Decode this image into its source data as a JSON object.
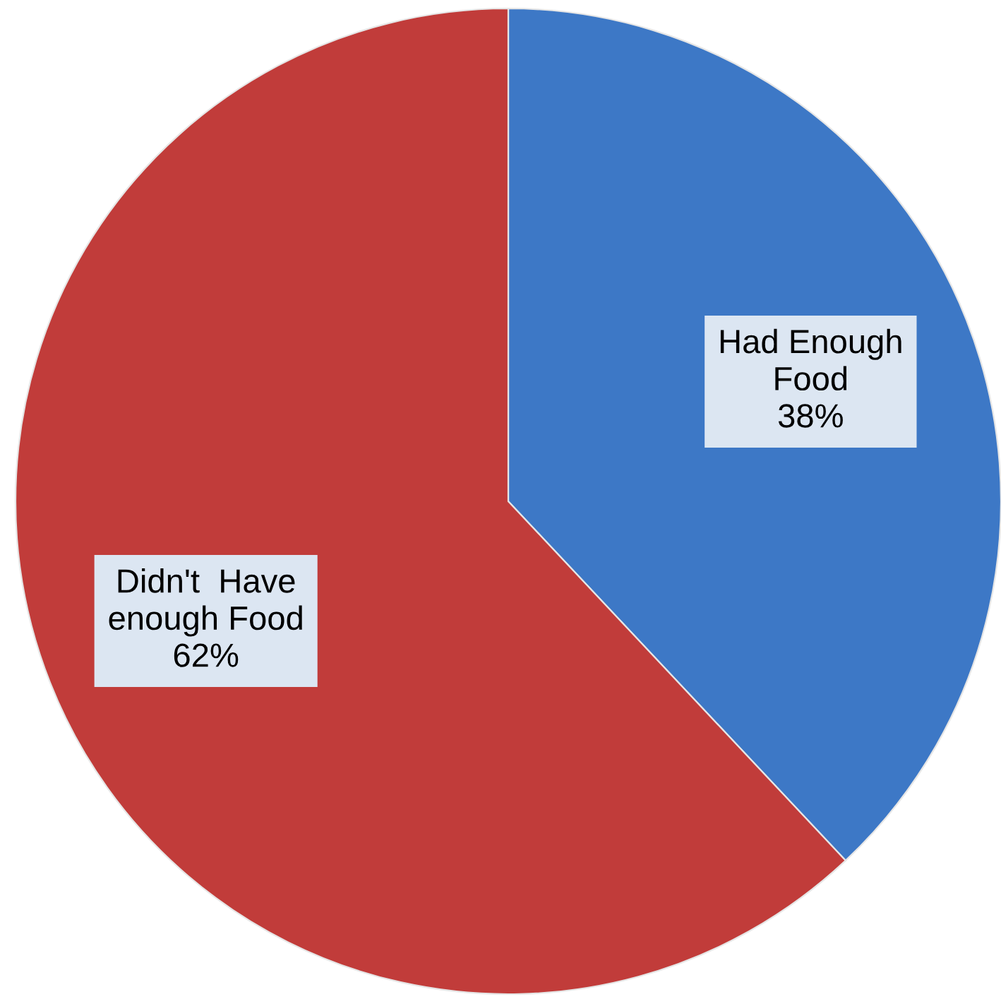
{
  "chart_data": {
    "type": "pie",
    "categories": [
      "Had Enough\nFood",
      "Didn't  Have\nenough Food"
    ],
    "values": [
      38,
      62
    ],
    "value_labels": [
      "38%",
      "62%"
    ],
    "colors": [
      "#3d78c6",
      "#c13c3a"
    ]
  }
}
